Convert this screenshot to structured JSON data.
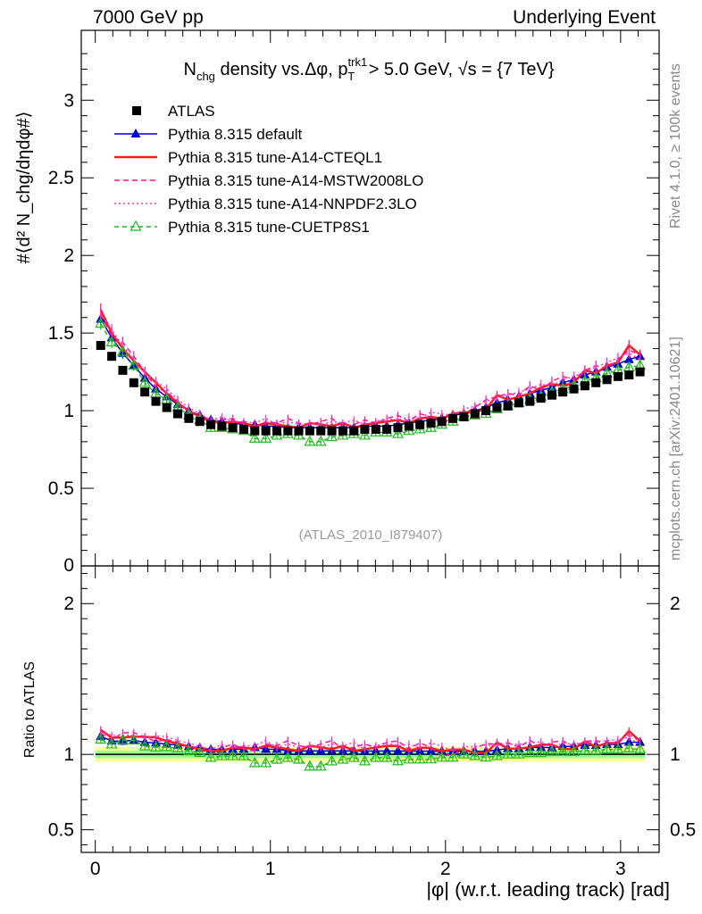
{
  "header": {
    "left": "7000 GeV pp",
    "right": "Underlying Event"
  },
  "side_labels": {
    "rivet": "Rivet 4.1.0, ≥ 100k events",
    "mcplots": "mcplots.cern.ch [arXiv:2401.10621]"
  },
  "chart_data": {
    "type": "scatter",
    "title": "N_chg density vs.Δφ, p_T^trk1 > 5.0 GeV, √s = {7 TeV}",
    "title_parts": {
      "n": "N",
      "chg": "chg",
      "mid": " density vs.Δφ, p",
      "sup": "trk1",
      "sub": "T",
      "tail": " > 5.0 GeV, √s = {7 TeV}"
    },
    "analysis_id": "(ATLAS_2010_I879407)",
    "xlabel": "|φ| (w.r.t. leading track) [rad]",
    "ylabel": "#⟨d² N_chg/dηdφ#⟩",
    "ylabel_ratio": "Ratio to ATLAS",
    "xlim": [
      -0.08,
      3.22
    ],
    "ylim_main": [
      0,
      3.45
    ],
    "ylim_ratio": [
      0.35,
      2.25
    ],
    "xticks": [
      0,
      1,
      2,
      3
    ],
    "xtick_labels": [
      "0",
      "1",
      "2",
      "3"
    ],
    "yticks_main": [
      0.5,
      1,
      1.5,
      2,
      2.5,
      3
    ],
    "yticks_main_labels": [
      "0.5",
      "1",
      "1.5",
      "2",
      "2.5",
      "3"
    ],
    "y0_label": "0",
    "yticks_ratio": [
      0.5,
      1,
      2
    ],
    "yticks_ratio_labels": [
      "0.5",
      "1",
      "2"
    ],
    "legend": [
      {
        "label": "ATLAS",
        "style": "data"
      },
      {
        "label": "Pythia 8.315 default",
        "style": "default"
      },
      {
        "label": "Pythia 8.315 tune-A14-CTEQL1",
        "style": "cteq"
      },
      {
        "label": "Pythia 8.315 tune-A14-MSTW2008LO",
        "style": "mstw"
      },
      {
        "label": "Pythia 8.315 tune-A14-NNPDF2.3LO",
        "style": "nnpdf"
      },
      {
        "label": "Pythia 8.315 tune-CUETP8S1",
        "style": "cuetp"
      }
    ],
    "colors": {
      "data": "#000000",
      "default": "#0000cc",
      "cteq": "#ff1a1a",
      "mstw": "#ff1493",
      "nnpdf": "#ff33cc",
      "cuetp": "#22bb22",
      "band_outer": "#ffff99",
      "band_inner": "#99ff99"
    },
    "x": [
      0.031,
      0.094,
      0.157,
      0.22,
      0.283,
      0.346,
      0.408,
      0.471,
      0.534,
      0.597,
      0.66,
      0.723,
      0.785,
      0.848,
      0.911,
      0.974,
      1.037,
      1.1,
      1.162,
      1.225,
      1.288,
      1.351,
      1.414,
      1.477,
      1.539,
      1.602,
      1.665,
      1.728,
      1.791,
      1.854,
      1.917,
      1.979,
      2.042,
      2.105,
      2.168,
      2.231,
      2.294,
      2.356,
      2.419,
      2.482,
      2.545,
      2.608,
      2.67,
      2.733,
      2.796,
      2.859,
      2.922,
      2.985,
      3.048,
      3.111
    ],
    "atlas": [
      1.42,
      1.35,
      1.26,
      1.18,
      1.12,
      1.06,
      1.02,
      0.98,
      0.95,
      0.93,
      0.91,
      0.9,
      0.89,
      0.88,
      0.87,
      0.87,
      0.87,
      0.87,
      0.87,
      0.87,
      0.87,
      0.87,
      0.87,
      0.87,
      0.88,
      0.88,
      0.88,
      0.89,
      0.9,
      0.91,
      0.92,
      0.93,
      0.95,
      0.96,
      0.98,
      1.0,
      1.02,
      1.03,
      1.05,
      1.06,
      1.08,
      1.1,
      1.12,
      1.14,
      1.16,
      1.18,
      1.2,
      1.22,
      1.23,
      1.25
    ],
    "series": [
      {
        "name": "Pythia 8.315 default",
        "style": "default",
        "values": [
          1.59,
          1.47,
          1.37,
          1.29,
          1.21,
          1.14,
          1.09,
          1.04,
          1.0,
          0.97,
          0.94,
          0.93,
          0.92,
          0.91,
          0.91,
          0.9,
          0.9,
          0.89,
          0.89,
          0.89,
          0.89,
          0.89,
          0.89,
          0.89,
          0.9,
          0.9,
          0.9,
          0.91,
          0.92,
          0.93,
          0.94,
          0.95,
          0.97,
          0.98,
          1.0,
          1.02,
          1.05,
          1.07,
          1.09,
          1.11,
          1.13,
          1.15,
          1.18,
          1.2,
          1.23,
          1.25,
          1.28,
          1.3,
          1.33,
          1.35
        ]
      },
      {
        "name": "Pythia 8.315 tune-A14-CTEQL1",
        "style": "cteq",
        "values": [
          1.65,
          1.5,
          1.4,
          1.32,
          1.25,
          1.18,
          1.11,
          1.05,
          1.0,
          0.96,
          0.93,
          0.92,
          0.93,
          0.92,
          0.9,
          0.92,
          0.91,
          0.9,
          0.89,
          0.92,
          0.91,
          0.9,
          0.92,
          0.89,
          0.91,
          0.92,
          0.93,
          0.94,
          0.92,
          0.95,
          0.96,
          0.95,
          0.98,
          0.99,
          0.99,
          1.01,
          1.1,
          1.07,
          1.09,
          1.11,
          1.15,
          1.17,
          1.16,
          1.18,
          1.26,
          1.24,
          1.29,
          1.31,
          1.42,
          1.36
        ]
      },
      {
        "name": "Pythia 8.315 tune-A14-MSTW2008LO",
        "style": "mstw",
        "values": [
          1.62,
          1.48,
          1.44,
          1.35,
          1.25,
          1.15,
          1.12,
          1.06,
          0.99,
          0.98,
          0.93,
          0.94,
          0.95,
          0.91,
          0.89,
          0.93,
          0.92,
          0.95,
          0.92,
          0.91,
          0.93,
          0.95,
          0.9,
          0.91,
          0.94,
          0.92,
          0.95,
          0.97,
          0.93,
          0.98,
          0.96,
          0.92,
          0.95,
          0.98,
          1.02,
          1.07,
          1.09,
          1.11,
          1.1,
          1.16,
          1.13,
          1.19,
          1.22,
          1.2,
          1.26,
          1.29,
          1.27,
          1.33,
          1.39,
          1.36
        ]
      },
      {
        "name": "Pythia 8.315 tune-A14-NNPDF2.3LO",
        "style": "nnpdf",
        "values": [
          1.63,
          1.52,
          1.42,
          1.33,
          1.24,
          1.19,
          1.14,
          1.07,
          1.02,
          0.98,
          0.94,
          0.96,
          0.93,
          0.93,
          0.92,
          0.95,
          0.91,
          0.93,
          0.91,
          0.92,
          0.91,
          0.93,
          0.92,
          0.94,
          0.91,
          0.93,
          0.95,
          0.94,
          0.96,
          0.95,
          0.99,
          0.98,
          0.97,
          1.01,
          1.03,
          1.06,
          1.08,
          1.1,
          1.12,
          1.14,
          1.17,
          1.16,
          1.2,
          1.22,
          1.25,
          1.28,
          1.31,
          1.34,
          1.37,
          1.33
        ]
      },
      {
        "name": "Pythia 8.315 tune-CUETP8S1",
        "style": "cuetp",
        "values": [
          1.56,
          1.44,
          1.38,
          1.29,
          1.18,
          1.11,
          1.07,
          1.02,
          0.97,
          0.94,
          0.89,
          0.89,
          0.88,
          0.87,
          0.82,
          0.82,
          0.84,
          0.85,
          0.84,
          0.8,
          0.8,
          0.83,
          0.84,
          0.85,
          0.84,
          0.86,
          0.86,
          0.85,
          0.87,
          0.88,
          0.89,
          0.91,
          0.93,
          0.96,
          0.97,
          0.98,
          1.01,
          1.03,
          1.05,
          1.07,
          1.09,
          1.12,
          1.14,
          1.16,
          1.19,
          1.21,
          1.24,
          1.26,
          1.28,
          1.29
        ]
      }
    ]
  }
}
